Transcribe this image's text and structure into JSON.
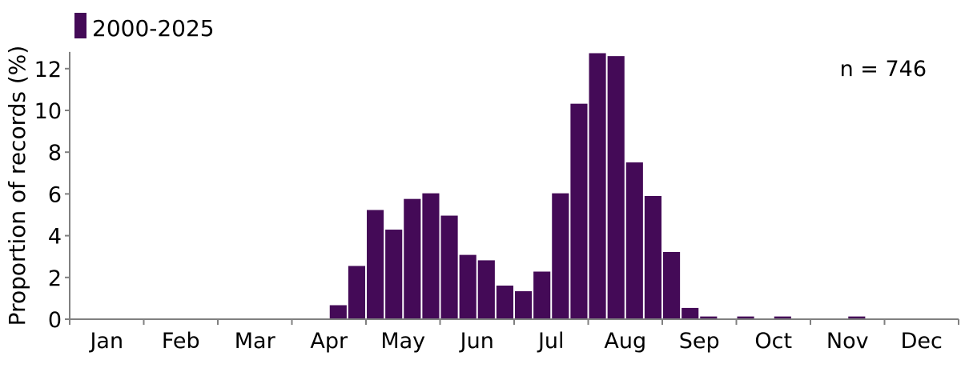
{
  "chart_data": {
    "type": "bar",
    "ylabel": "Proportion of records (%)",
    "ylim": [
      0,
      12.8
    ],
    "yticks": [
      0,
      2,
      4,
      6,
      8,
      10,
      12
    ],
    "month_labels": [
      "Jan",
      "Feb",
      "Mar",
      "Apr",
      "May",
      "Jun",
      "Jul",
      "Aug",
      "Sep",
      "Oct",
      "Nov",
      "Dec"
    ],
    "grid": false,
    "legend_position": "top-left",
    "annotation": "n = 746",
    "series": [
      {
        "name": "2000-2025",
        "color": "#440a57",
        "bins_per_month": 4,
        "values": [
          0,
          0,
          0,
          0,
          0,
          0,
          0,
          0,
          0,
          0,
          0,
          0,
          0,
          0,
          0.67,
          2.55,
          5.23,
          4.29,
          5.76,
          6.03,
          4.96,
          3.08,
          2.82,
          1.61,
          1.34,
          2.28,
          6.03,
          10.32,
          12.74,
          12.6,
          7.51,
          5.9,
          3.22,
          0.54,
          0.13,
          0,
          0.13,
          0,
          0.13,
          0,
          0,
          0,
          0.13,
          0,
          0,
          0,
          0,
          0
        ]
      }
    ]
  }
}
